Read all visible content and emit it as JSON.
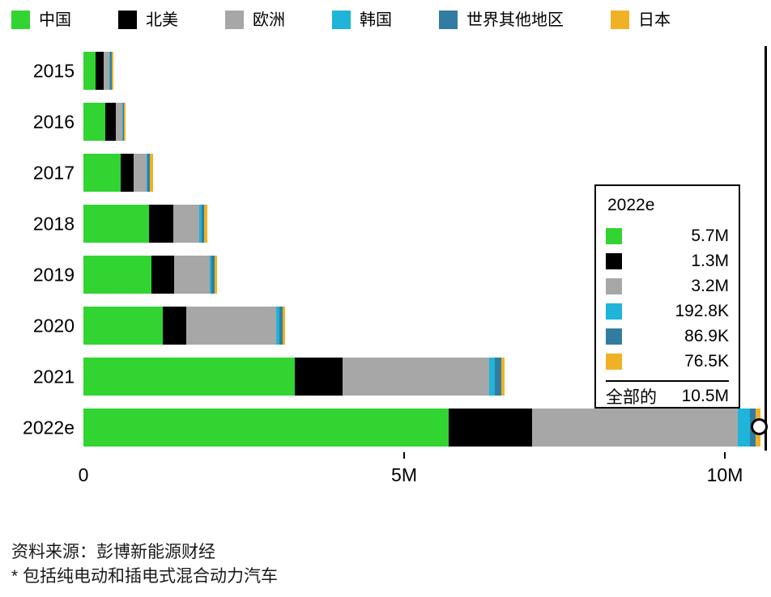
{
  "legend": {
    "items": [
      {
        "label": "中国",
        "color": "#31d431"
      },
      {
        "label": "北美",
        "color": "#000000"
      },
      {
        "label": "欧洲",
        "color": "#a7a7a7"
      },
      {
        "label": "韩国",
        "color": "#1fb4d9"
      },
      {
        "label": "世界其他地区",
        "color": "#337ca1"
      },
      {
        "label": "日本",
        "color": "#eeb224"
      }
    ]
  },
  "chart_data": {
    "type": "bar",
    "orientation": "horizontal",
    "stacked": true,
    "unit": "millions of vehicles",
    "categories": [
      "2015",
      "2016",
      "2017",
      "2018",
      "2019",
      "2020",
      "2021",
      "2022e"
    ],
    "series": [
      {
        "name": "中国",
        "color": "#31d431",
        "values": [
          0.19,
          0.34,
          0.58,
          1.02,
          1.06,
          1.24,
          3.3,
          5.7
        ]
      },
      {
        "name": "北美",
        "color": "#000000",
        "values": [
          0.12,
          0.16,
          0.2,
          0.38,
          0.35,
          0.36,
          0.74,
          1.3
        ]
      },
      {
        "name": "欧洲",
        "color": "#a7a7a7",
        "values": [
          0.1,
          0.1,
          0.21,
          0.41,
          0.56,
          1.4,
          2.28,
          3.2
        ]
      },
      {
        "name": "韩国",
        "color": "#1fb4d9",
        "values": [
          0.004,
          0.005,
          0.01,
          0.03,
          0.03,
          0.05,
          0.1,
          0.1928
        ]
      },
      {
        "name": "世界其他地区",
        "color": "#337ca1",
        "values": [
          0.015,
          0.02,
          0.03,
          0.04,
          0.05,
          0.06,
          0.09,
          0.0869
        ]
      },
      {
        "name": "日本",
        "color": "#eeb224",
        "values": [
          0.025,
          0.025,
          0.055,
          0.05,
          0.04,
          0.03,
          0.05,
          0.0765
        ]
      }
    ],
    "x_ticks": [
      "0",
      "5M",
      "10M"
    ],
    "x_tick_values": [
      0,
      5,
      10
    ],
    "xlim": [
      0,
      10.65
    ],
    "grid": false,
    "legend_position": "top",
    "annotation": {
      "year": "2022e",
      "total": "10.5M"
    }
  },
  "tooltip": {
    "title": "2022e",
    "rows": [
      {
        "series": "中国",
        "color": "#31d431",
        "value": "5.7M"
      },
      {
        "series": "北美",
        "color": "#000000",
        "value": "1.3M"
      },
      {
        "series": "欧洲",
        "color": "#a7a7a7",
        "value": "3.2M"
      },
      {
        "series": "韩国",
        "color": "#1fb4d9",
        "value": "192.8K"
      },
      {
        "series": "世界其他地区",
        "color": "#337ca1",
        "value": "86.9K"
      },
      {
        "series": "日本",
        "color": "#eeb224",
        "value": "76.5K"
      }
    ],
    "total_label": "全部的",
    "total_value": "10.5M"
  },
  "footer": {
    "source": "资料来源：彭博新能源财经",
    "note": "* 包括纯电动和插电式混合动力汽车"
  }
}
